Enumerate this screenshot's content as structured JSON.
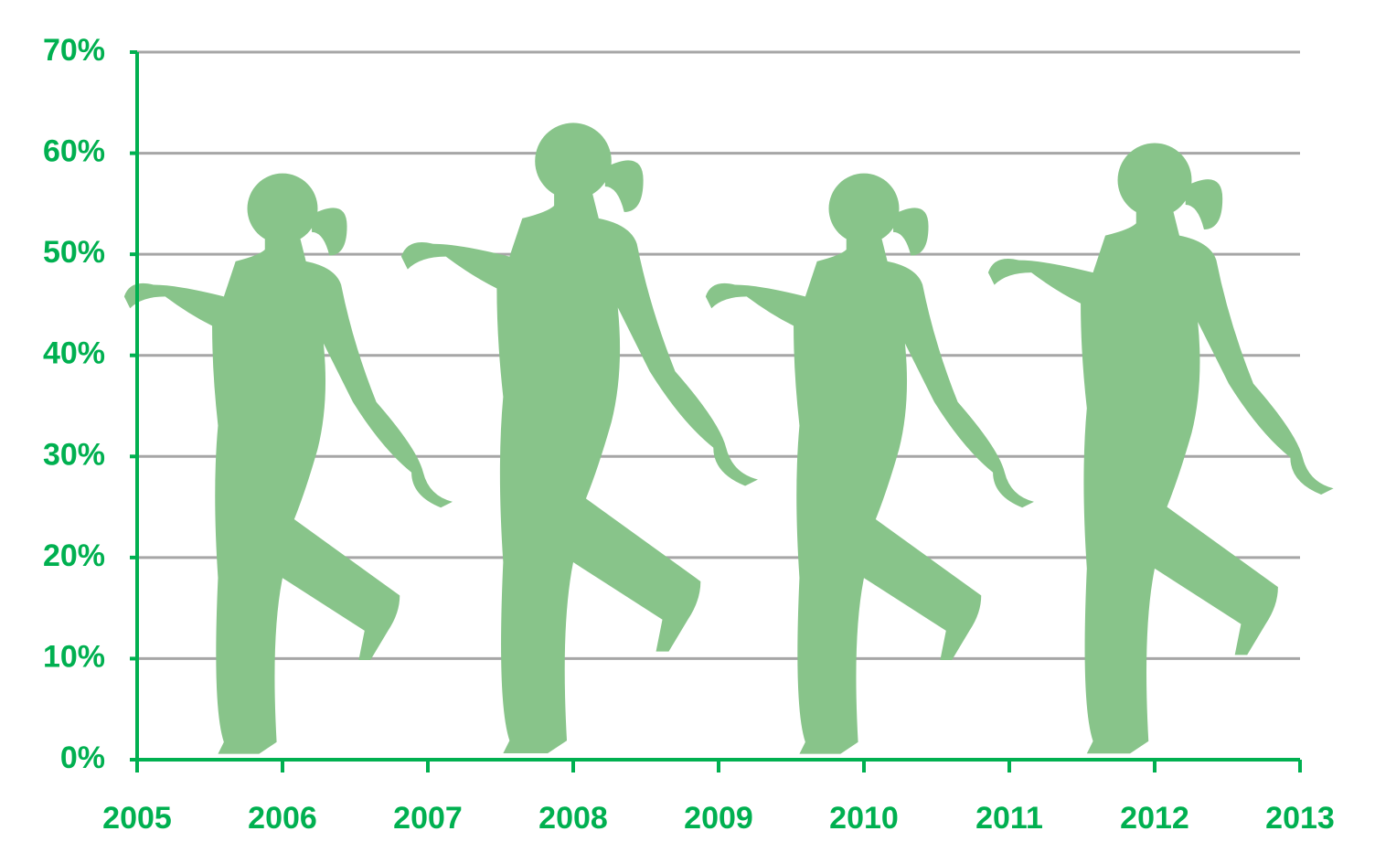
{
  "chart_data": {
    "type": "pictograph",
    "x": [
      2006,
      2008,
      2010,
      2012
    ],
    "values": [
      58,
      63,
      58,
      61
    ],
    "color": "#88c48a",
    "axis_color": "#00b050",
    "xlim": [
      2005,
      2013
    ],
    "xticks": [
      2005,
      2006,
      2007,
      2008,
      2009,
      2010,
      2011,
      2012,
      2013
    ],
    "ylim": [
      0,
      70
    ],
    "yticks": [
      {
        "value": 0,
        "label": "0%"
      },
      {
        "value": 10,
        "label": "10%"
      },
      {
        "value": 20,
        "label": "20%"
      },
      {
        "value": 30,
        "label": "30%"
      },
      {
        "value": 40,
        "label": "40%"
      },
      {
        "value": 50,
        "label": "50%"
      },
      {
        "value": 60,
        "label": "60%"
      },
      {
        "value": 70,
        "label": "70%"
      }
    ],
    "grid": true
  }
}
